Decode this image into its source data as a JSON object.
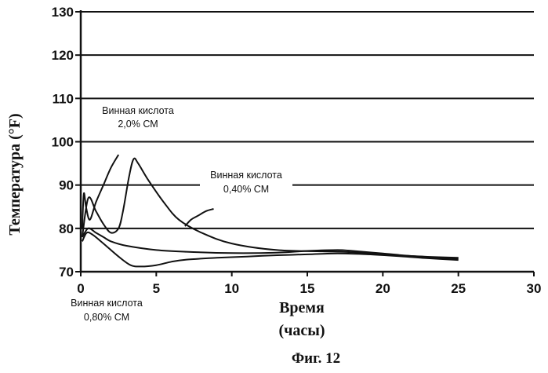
{
  "chart_data": {
    "type": "line",
    "title": "",
    "caption": "Фиг. 12",
    "xlabel_line1": "Время",
    "xlabel_line2": "(часы)",
    "ylabel": "Температура (°F)",
    "xlim": [
      0,
      30
    ],
    "ylim": [
      70,
      130
    ],
    "xticks": [
      0,
      5,
      10,
      15,
      20,
      25,
      30
    ],
    "yticks": [
      70,
      80,
      90,
      100,
      110,
      120,
      130
    ],
    "grid": "horizontal",
    "annotations": [
      {
        "line1": "Винная кислота",
        "line2": "2,0% СМ"
      },
      {
        "line1": "Винная кислота",
        "line2": "0,40% СМ"
      },
      {
        "line1": "Винная кислота",
        "line2": "0,80% СМ"
      }
    ],
    "series": [
      {
        "x": [
          0.1,
          0.2,
          0.35,
          0.6,
          1.0,
          1.5,
          2.0,
          2.5
        ],
        "y": [
          80,
          88,
          85,
          82,
          86,
          90,
          94,
          97
        ]
      },
      {
        "x": [
          0.1,
          0.5,
          1.0,
          1.5,
          2.0,
          2.5,
          2.8,
          3.2,
          3.5,
          3.8,
          4.5,
          5.5,
          6.5,
          8,
          10,
          13,
          16,
          18,
          20,
          22,
          25
        ],
        "y": [
          78,
          87,
          84,
          81,
          79,
          80,
          84,
          92,
          96,
          95,
          91,
          86,
          82,
          79,
          76.5,
          75,
          74.7,
          74.5,
          74,
          73.6,
          73.2
        ]
      },
      {
        "x": [
          0.1,
          0.5,
          1,
          1.5,
          2,
          3,
          5,
          7,
          10,
          13,
          15,
          17,
          18,
          20,
          22,
          25
        ],
        "y": [
          78,
          80,
          79,
          78,
          77,
          76,
          75,
          74.6,
          74.3,
          74.4,
          74.8,
          75,
          74.8,
          74.2,
          73.6,
          73.0
        ]
      },
      {
        "x": [
          0.1,
          0.4,
          0.8,
          1.5,
          2.5,
          3.3,
          4,
          5,
          6,
          7,
          9,
          11,
          13,
          15,
          17,
          19,
          21,
          23,
          25
        ],
        "y": [
          77,
          79,
          78.5,
          76.5,
          73.5,
          71.5,
          71.2,
          71.5,
          72.3,
          72.8,
          73.2,
          73.5,
          73.8,
          74.0,
          74.2,
          74.0,
          73.6,
          73.1,
          72.7
        ]
      },
      {
        "x": [
          6.9,
          7.3,
          7.8,
          8.3,
          8.8
        ],
        "y": [
          80.5,
          82,
          83,
          84,
          84.5
        ]
      }
    ]
  }
}
